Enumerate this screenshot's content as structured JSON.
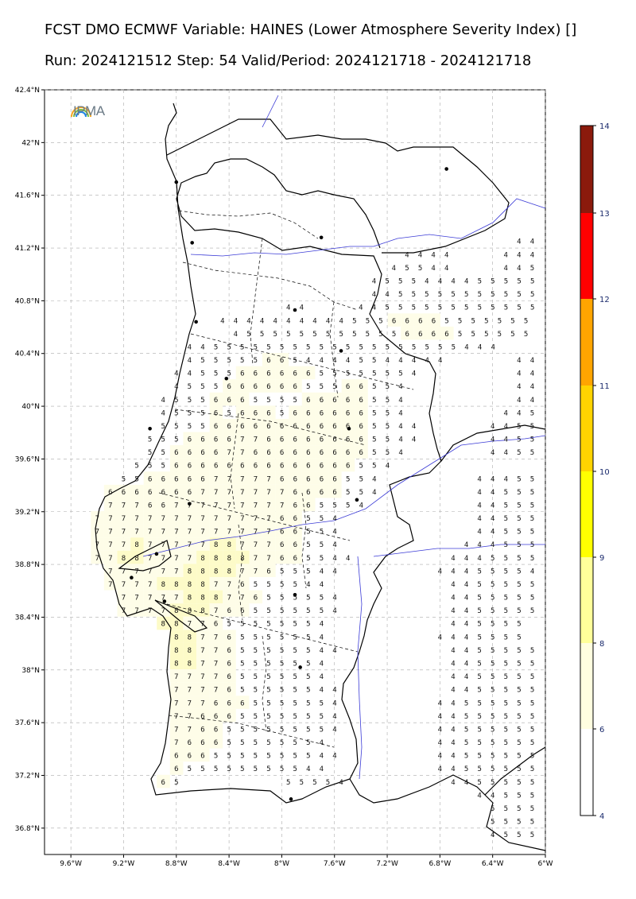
{
  "title_line1": "FCST DMO ECMWF Variable: HAINES (Lower Atmosphere Severity Index) []",
  "title_line2": "Run: 2024121512 Step: 54 Valid/Period: 2024121718 - 2024121718",
  "logo_text": "IPMA",
  "logo_icon": "rainbow-arc-icon",
  "map": {
    "lat_ticks": [
      "42.4°N",
      "42°N",
      "41.6°N",
      "41.2°N",
      "40.8°N",
      "40.4°N",
      "40°N",
      "39.6°N",
      "39.2°N",
      "38.8°N",
      "38.4°N",
      "38°N",
      "37.6°N",
      "37.2°N",
      "36.8°N"
    ],
    "lon_ticks": [
      "9.6°W",
      "9.2°W",
      "8.8°W",
      "8.4°W",
      "8°W",
      "7.6°W",
      "7.2°W",
      "6.8°W",
      "6.4°W",
      "6°W"
    ],
    "lat_range": [
      36.6,
      42.4
    ],
    "lon_range": [
      -9.8,
      -6.0
    ],
    "grid": true,
    "land_color": "#ffffff",
    "border_color": "#000000",
    "river_color": "#3b3bd6"
  },
  "colorbar": {
    "labels": [
      "14",
      "13",
      "12",
      "11",
      "10",
      "9",
      "8",
      "6",
      "4"
    ],
    "colors": [
      "#8b1a0c",
      "#ff0000",
      "#ffa500",
      "#ffd400",
      "#ffff00",
      "#ffff9a",
      "#fffee0",
      "#ffffff"
    ]
  },
  "cell_values": [
    {
      "lat": 41.25,
      "lon": -6.2,
      "v": "4 4"
    },
    {
      "lat": 41.15,
      "lon": -6.3,
      "v": "4 4 4 5"
    },
    {
      "lat": 41.05,
      "lon": -6.3,
      "v": "4 4 5 5"
    },
    {
      "lat": 41.15,
      "lon": -7.05,
      "v": "4 4 4 4"
    },
    {
      "lat": 41.05,
      "lon": -7.15,
      "v": "4 5 5 4 4"
    },
    {
      "lat": 40.95,
      "lon": -7.3,
      "v": "4 5 5 5 4 4 4 4 5 5 5 5 5"
    },
    {
      "lat": 40.85,
      "lon": -7.3,
      "v": "4 4 5 5 5 5 5 5 5 5 5 5 5 5"
    },
    {
      "lat": 40.75,
      "lon": -7.4,
      "v": "4 4 5 5 5 5 5 5 5 5 5 5 5 5"
    },
    {
      "lat": 40.75,
      "lon": -7.95,
      "v": "4 4"
    },
    {
      "lat": 40.65,
      "lon": -8.45,
      "v": "4 4 4 4 4 4 4 4 4 4 5 5 5 6 6 6 6 5 5 5 5 5 5 5"
    },
    {
      "lat": 40.55,
      "lon": -8.35,
      "v": "4 5 5 5 5 5 5 5 5 5 5 5 5 6 6 6 6 5 5 5 5 5 5"
    },
    {
      "lat": 40.45,
      "lon": -8.7,
      "v": "4 4 5 5 5 5 5 5 5 5 5 5 5 5 5 5 5 5 5 5 5 4 4 4"
    },
    {
      "lat": 40.35,
      "lon": -8.7,
      "v": "4 5 5 5 5 5 6 6 5 4 4 4 4 5 5 4 4 4 4 4"
    },
    {
      "lat": 40.25,
      "lon": -8.8,
      "v": "4 4 5 5 5 6 6 6 6 6 6 5 5 5 5 5 5 5 4"
    },
    {
      "lat": 40.15,
      "lon": -8.8,
      "v": "4 5 5 5 6 6 6 6 6 6 5 5 5 6 6 5 5 4"
    },
    {
      "lat": 40.05,
      "lon": -8.9,
      "v": "4 5 5 5 6 6 6 5 5 5 5 6 6 6 6 6 5 5 4"
    },
    {
      "lat": 39.95,
      "lon": -8.9,
      "v": "4 5 5 5 6 5 6 6 6 5 6 6 6 6 6 6 5 5 4"
    },
    {
      "lat": 39.85,
      "lon": -8.9,
      "v": "5 5 5 5 6 6 6 6 6 6 6 6 6 6 6 6 5 5 4 4"
    },
    {
      "lat": 39.75,
      "lon": -9.0,
      "v": "5 5 5 6 6 6 6 7 7 6 6 6 6 6 6 6 6 5 5 4 4"
    },
    {
      "lat": 39.65,
      "lon": -9.0,
      "v": "5 5 6 6 6 6 7 7 6 6 6 6 6 6 6 6 6 5 5 4"
    },
    {
      "lat": 39.55,
      "lon": -9.1,
      "v": "5 5 5 6 6 6 6 6 6 6 6 6 6 6 6 6 6 5 5 4"
    },
    {
      "lat": 39.45,
      "lon": -9.2,
      "v": "5 5 6 6 6 6 6 7 7 7 7 7 6 6 6 6 6 5 5 4"
    },
    {
      "lat": 39.35,
      "lon": -9.3,
      "v": "6 6 6 6 6 6 6 7 7 7 7 7 7 7 6 6 6 6 5 5 4"
    },
    {
      "lat": 39.25,
      "lon": -9.3,
      "v": "7 7 7 6 6 7 7 7 7 7 7 7 7 7 6 6 5 5 5 4"
    },
    {
      "lat": 39.15,
      "lon": -9.4,
      "v": "7 7 7 7 7 7 7 7 7 7 7 7 7 7 6 6 5 5 4"
    },
    {
      "lat": 39.05,
      "lon": -9.4,
      "v": "7 7 7 7 7 7 7 7 7 7 7 7 7 7 6 6 5 5 4"
    },
    {
      "lat": 38.95,
      "lon": -9.4,
      "v": "7 7 7 8 7 7 7 7 7 8 8 7 7 7 6 6 5 5 4"
    },
    {
      "lat": 38.85,
      "lon": -9.4,
      "v": "7 7 8 8 7 7 7 7 8 8 8 8 7 7 6 6 5 5 4 4"
    },
    {
      "lat": 38.75,
      "lon": -9.3,
      "v": "7 7 7 7 7 7 8 8 8 8 7 7 6 5 5 5 4 4"
    },
    {
      "lat": 38.65,
      "lon": -9.3,
      "v": "7 7 7 7 8 8 8 8 7 7 6 5 5 5 5 4 4"
    },
    {
      "lat": 38.55,
      "lon": -9.2,
      "v": "7 7 7 7 7 8 8 8 7 7 6 5 5 5 5 5 4"
    },
    {
      "lat": 38.45,
      "lon": -9.2,
      "v": "7 7 7 7 8 8 8 7 6 6 5 5 5 5 5 5 4"
    },
    {
      "lat": 38.35,
      "lon": -8.9,
      "v": "8 8 7 7 6 5 5 5 5 5 5 5 4"
    },
    {
      "lat": 38.25,
      "lon": -8.8,
      "v": "8 8 7 7 6 5 5 5 5 5 5 4"
    },
    {
      "lat": 38.15,
      "lon": -8.8,
      "v": "8 8 7 7 6 5 5 5 5 5 5 4 4"
    },
    {
      "lat": 38.05,
      "lon": -8.8,
      "v": "8 8 7 7 6 5 5 5 5 5 5 4"
    },
    {
      "lat": 37.95,
      "lon": -8.8,
      "v": "7 7 7 7 6 5 5 5 5 5 5 4"
    },
    {
      "lat": 37.85,
      "lon": -8.8,
      "v": "7 7 7 7 6 5 5 5 5 5 5 4 4"
    },
    {
      "lat": 37.75,
      "lon": -8.8,
      "v": "7 7 7 6 6 6 5 5 5 5 5 5 4"
    },
    {
      "lat": 37.65,
      "lon": -8.8,
      "v": "7 7 6 6 6 5 5 5 5 5 5 5 4"
    },
    {
      "lat": 37.55,
      "lon": -8.8,
      "v": "7 7 6 6 5 5 5 5 5 5 5 5 4"
    },
    {
      "lat": 37.45,
      "lon": -8.8,
      "v": "7 6 6 6 5 5 5 5 5 5 5 4"
    },
    {
      "lat": 37.35,
      "lon": -8.8,
      "v": "6 6 6 5 5 5 5 5 5 5 5 4 4"
    },
    {
      "lat": 37.25,
      "lon": -8.8,
      "v": "6 5 5 5 5 5 5 5 5 5 4 4"
    },
    {
      "lat": 37.15,
      "lon": -8.9,
      "v": "6 5"
    },
    {
      "lat": 37.15,
      "lon": -7.95,
      "v": "5 5 5 5 4"
    },
    {
      "lat": 39.45,
      "lon": -6.5,
      "v": "4 4 4 5 5"
    },
    {
      "lat": 39.35,
      "lon": -6.5,
      "v": "4 4 5 5 5"
    },
    {
      "lat": 39.25,
      "lon": -6.5,
      "v": "4 4 5 5 5"
    },
    {
      "lat": 39.15,
      "lon": -6.5,
      "v": "4 4 5 5 5"
    },
    {
      "lat": 39.05,
      "lon": -6.5,
      "v": "4 4 5 5 5"
    },
    {
      "lat": 38.95,
      "lon": -6.6,
      "v": "4 4 4 5 5 5"
    },
    {
      "lat": 38.85,
      "lon": -6.7,
      "v": "4 4 4 5 5 5 5"
    },
    {
      "lat": 38.75,
      "lon": -6.8,
      "v": "4 4 4 5 5 5 5 4"
    },
    {
      "lat": 38.65,
      "lon": -6.7,
      "v": "4 4 5 5 5 5 5"
    },
    {
      "lat": 38.55,
      "lon": -6.7,
      "v": "4 4 5 5 5 5 5"
    },
    {
      "lat": 38.45,
      "lon": -6.7,
      "v": "4 4 5 5 5 5 5"
    },
    {
      "lat": 38.35,
      "lon": -6.7,
      "v": "4 4 5 5 5 5"
    },
    {
      "lat": 38.25,
      "lon": -6.8,
      "v": "4 4 4 5 5 5 5"
    },
    {
      "lat": 38.15,
      "lon": -6.7,
      "v": "4 4 5 5 5 5 5"
    },
    {
      "lat": 38.05,
      "lon": -6.7,
      "v": "4 4 5 5 5 5 5"
    },
    {
      "lat": 37.95,
      "lon": -6.7,
      "v": "4 4 5 5 5 5 5"
    },
    {
      "lat": 37.85,
      "lon": -6.7,
      "v": "4 4 5 5 5 5 5"
    },
    {
      "lat": 37.75,
      "lon": -6.8,
      "v": "4 4 5 5 5 5 5 5"
    },
    {
      "lat": 37.65,
      "lon": -6.8,
      "v": "4 4 5 5 5 5 5 5"
    },
    {
      "lat": 37.55,
      "lon": -6.8,
      "v": "4 4 5 5 5 5 5 5"
    },
    {
      "lat": 37.45,
      "lon": -6.8,
      "v": "4 4 5 5 5 5 5 5"
    },
    {
      "lat": 37.35,
      "lon": -6.8,
      "v": "4 4 5 5 5 5 5 5"
    },
    {
      "lat": 37.25,
      "lon": -6.8,
      "v": "4 4 5 5 5 5 5 5"
    },
    {
      "lat": 37.15,
      "lon": -6.7,
      "v": "4 4 5 5 5 5 5"
    },
    {
      "lat": 37.05,
      "lon": -6.5,
      "v": "4 4 5 5 5 5"
    },
    {
      "lat": 36.95,
      "lon": -6.4,
      "v": "5 5 5 5"
    },
    {
      "lat": 36.85,
      "lon": -6.4,
      "v": "5 5 5 5"
    },
    {
      "lat": 36.75,
      "lon": -6.4,
      "v": "4 5 5 5"
    },
    {
      "lat": 40.15,
      "lon": -6.2,
      "v": "4 4"
    },
    {
      "lat": 40.05,
      "lon": -6.2,
      "v": "4 4"
    },
    {
      "lat": 39.95,
      "lon": -6.3,
      "v": "4 4 5"
    },
    {
      "lat": 39.85,
      "lon": -6.4,
      "v": "4 4 5 5"
    },
    {
      "lat": 39.75,
      "lon": -6.4,
      "v": "4 4 5 5"
    },
    {
      "lat": 39.65,
      "lon": -6.4,
      "v": "4 4 5 5"
    },
    {
      "lat": 40.35,
      "lon": -6.2,
      "v": "4 4"
    },
    {
      "lat": 40.25,
      "lon": -6.2,
      "v": "4 4"
    }
  ],
  "cities": [
    {
      "lat": 41.8,
      "lon": -6.75
    },
    {
      "lat": 41.7,
      "lon": -8.8
    },
    {
      "lat": 41.28,
      "lon": -7.7
    },
    {
      "lat": 41.24,
      "lon": -8.68
    },
    {
      "lat": 40.73,
      "lon": -7.9
    },
    {
      "lat": 40.64,
      "lon": -8.65
    },
    {
      "lat": 40.42,
      "lon": -7.55
    },
    {
      "lat": 40.21,
      "lon": -8.42
    },
    {
      "lat": 39.83,
      "lon": -9.0
    },
    {
      "lat": 39.83,
      "lon": -7.49
    },
    {
      "lat": 39.29,
      "lon": -7.43
    },
    {
      "lat": 39.26,
      "lon": -8.7
    },
    {
      "lat": 38.7,
      "lon": -9.14
    },
    {
      "lat": 38.88,
      "lon": -8.95
    },
    {
      "lat": 38.52,
      "lon": -8.89
    },
    {
      "lat": 38.57,
      "lon": -7.9
    },
    {
      "lat": 38.02,
      "lon": -7.86
    },
    {
      "lat": 37.02,
      "lon": -7.93
    }
  ]
}
